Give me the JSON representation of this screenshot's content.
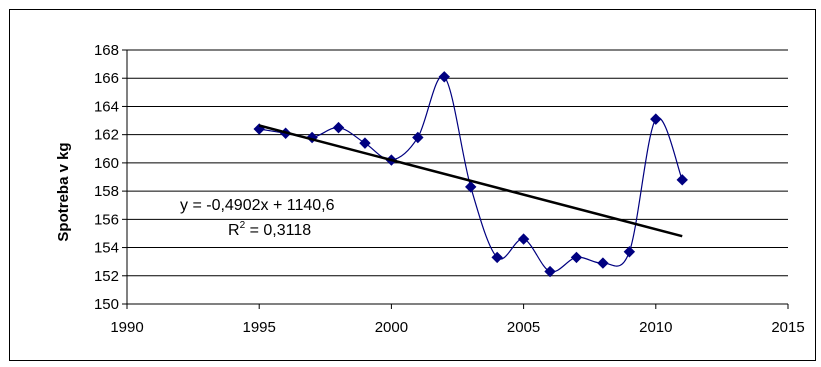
{
  "chart_data": {
    "type": "scatter",
    "title": "",
    "xlabel": "",
    "ylabel": "Spotreba v kg",
    "xlim": [
      1990,
      2015
    ],
    "ylim": [
      150,
      168
    ],
    "x_ticks": [
      1990,
      1995,
      2000,
      2005,
      2010,
      2015
    ],
    "y_ticks": [
      150,
      152,
      154,
      156,
      158,
      160,
      162,
      164,
      166,
      168
    ],
    "grid": "horizontal",
    "legend": "none",
    "series": [
      {
        "style": "smoothed line with diamond markers",
        "color": "#000080",
        "x": [
          1995,
          1996,
          1997,
          1998,
          1999,
          2000,
          2001,
          2002,
          2003,
          2004,
          2005,
          2006,
          2007,
          2008,
          2009,
          2010,
          2011
        ],
        "y": [
          162.4,
          162.1,
          161.8,
          162.5,
          161.4,
          160.2,
          161.8,
          166.1,
          158.3,
          153.3,
          154.6,
          152.3,
          153.3,
          152.9,
          153.7,
          163.1,
          158.8
        ]
      }
    ],
    "trendline": {
      "type": "linear",
      "slope": -0.4902,
      "intercept": 1140.6,
      "x_range": [
        1995,
        2011
      ],
      "color": "#000000"
    },
    "annotations": {
      "equation": "y = -0,4902x + 1140,6",
      "r2_label": "R",
      "r2_exponent": "2",
      "r2_value": " = 0,3118"
    }
  }
}
